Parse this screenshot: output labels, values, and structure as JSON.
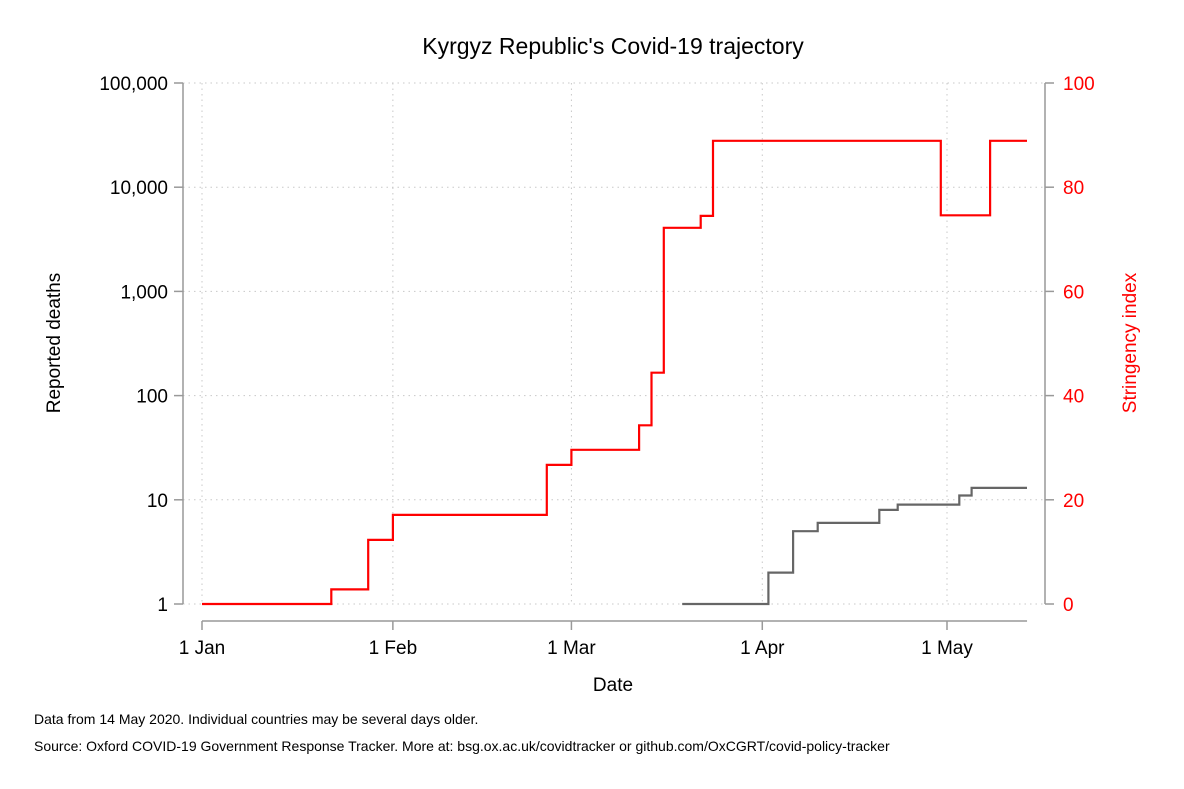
{
  "chart_data": {
    "type": "line",
    "title": "Kyrgyz Republic's Covid-19 trajectory",
    "xlabel": "Date",
    "ylabel_left": "Reported deaths",
    "ylabel_right": "Stringency index",
    "x_ticks": [
      {
        "date": "2020-01-01",
        "label": "1 Jan"
      },
      {
        "date": "2020-02-01",
        "label": "1 Feb"
      },
      {
        "date": "2020-03-01",
        "label": "1 Mar"
      },
      {
        "date": "2020-04-01",
        "label": "1 Apr"
      },
      {
        "date": "2020-05-01",
        "label": "1 May"
      }
    ],
    "xlim": [
      "2020-01-01",
      "2020-05-14"
    ],
    "y_left": {
      "scale": "log",
      "range": [
        1,
        100000
      ],
      "ticks": [
        {
          "value": 1,
          "label": "1"
        },
        {
          "value": 10,
          "label": "10"
        },
        {
          "value": 100,
          "label": "100"
        },
        {
          "value": 1000,
          "label": "1,000"
        },
        {
          "value": 10000,
          "label": "10,000"
        },
        {
          "value": 100000,
          "label": "100,000"
        }
      ]
    },
    "y_right": {
      "scale": "linear",
      "range": [
        0,
        100
      ],
      "ticks": [
        {
          "value": 0,
          "label": "0"
        },
        {
          "value": 20,
          "label": "20"
        },
        {
          "value": 40,
          "label": "40"
        },
        {
          "value": 60,
          "label": "60"
        },
        {
          "value": 80,
          "label": "80"
        },
        {
          "value": 100,
          "label": "100"
        }
      ]
    },
    "grid": true,
    "series": [
      {
        "axis": "left",
        "color": "#666666",
        "step": true,
        "points": [
          {
            "x": "2020-03-19",
            "y": 1
          },
          {
            "x": "2020-04-02",
            "y": 2
          },
          {
            "x": "2020-04-06",
            "y": 5
          },
          {
            "x": "2020-04-10",
            "y": 6
          },
          {
            "x": "2020-04-20",
            "y": 8
          },
          {
            "x": "2020-04-23",
            "y": 9
          },
          {
            "x": "2020-05-03",
            "y": 11
          },
          {
            "x": "2020-05-05",
            "y": 13
          },
          {
            "x": "2020-05-14",
            "y": 13
          }
        ]
      },
      {
        "axis": "right",
        "color": "#ff0000",
        "step": true,
        "points": [
          {
            "x": "2020-01-01",
            "y": 0
          },
          {
            "x": "2020-01-22",
            "y": 2.8
          },
          {
            "x": "2020-01-28",
            "y": 12.3
          },
          {
            "x": "2020-02-01",
            "y": 17.1
          },
          {
            "x": "2020-02-26",
            "y": 26.7
          },
          {
            "x": "2020-03-01",
            "y": 29.6
          },
          {
            "x": "2020-03-12",
            "y": 34.3
          },
          {
            "x": "2020-03-14",
            "y": 44.4
          },
          {
            "x": "2020-03-16",
            "y": 72.2
          },
          {
            "x": "2020-03-22",
            "y": 74.5
          },
          {
            "x": "2020-03-24",
            "y": 88.9
          },
          {
            "x": "2020-04-30",
            "y": 74.6
          },
          {
            "x": "2020-05-08",
            "y": 88.9
          },
          {
            "x": "2020-05-14",
            "y": 88.9
          }
        ]
      }
    ]
  },
  "footnotes": {
    "line1": "Data from 14 May 2020. Individual countries may be several days older.",
    "line2": "Source: Oxford COVID-19 Government Response Tracker. More at: bsg.ox.ac.uk/covidtracker or github.com/OxCGRT/covid-policy-tracker"
  }
}
